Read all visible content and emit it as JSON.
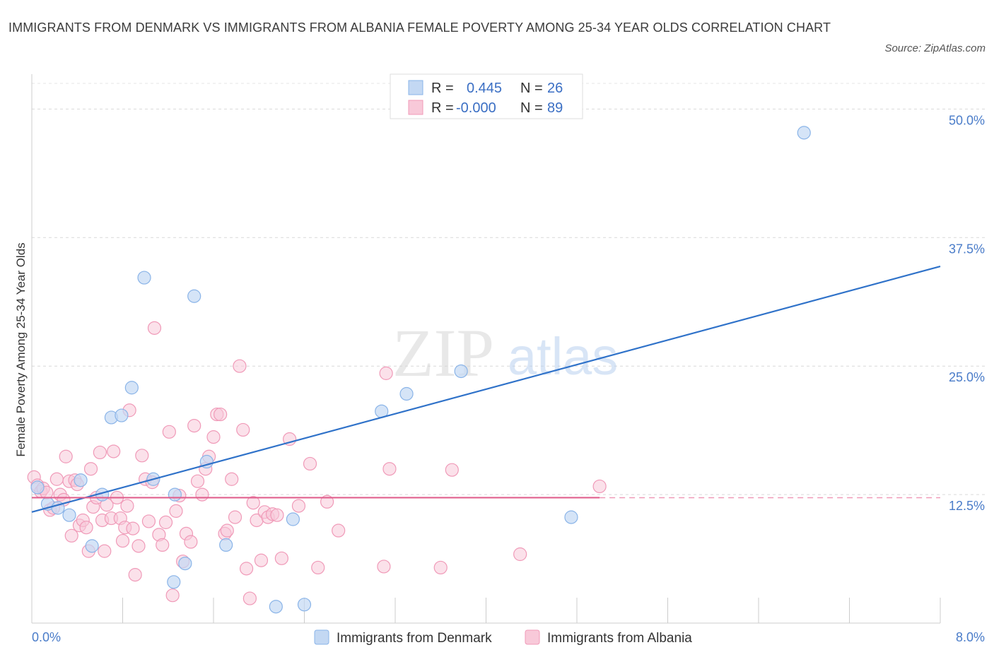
{
  "title": "IMMIGRANTS FROM DENMARK VS IMMIGRANTS FROM ALBANIA FEMALE POVERTY AMONG 25-34 YEAR OLDS CORRELATION CHART",
  "source": "Source: ZipAtlas.com",
  "watermark": {
    "zip": "ZIP",
    "atlas": "atlas"
  },
  "chart_data": {
    "type": "scatter",
    "title": "IMMIGRANTS FROM DENMARK VS IMMIGRANTS FROM ALBANIA FEMALE POVERTY AMONG 25-34 YEAR OLDS CORRELATION CHART",
    "xlabel": "",
    "ylabel": "Female Poverty Among 25-34 Year Olds",
    "xlim": [
      0,
      8
    ],
    "ylim": [
      0,
      52.5
    ],
    "x_tick_labels": [
      "0.0%",
      "8.0%"
    ],
    "y_ticks": [
      12.5,
      25.0,
      37.5,
      50.0
    ],
    "y_tick_labels": [
      "12.5%",
      "25.0%",
      "37.5%",
      "50.0%"
    ],
    "grid": true,
    "legend_position": "top-center",
    "stats": [
      {
        "r_label": "R =",
        "r_value": "0.445",
        "n_label": "N =",
        "n_value": "26"
      },
      {
        "r_label": "R =",
        "r_value": "-0.000",
        "n_label": "N =",
        "n_value": "89"
      }
    ],
    "series": [
      {
        "name": "Immigrants from Denmark",
        "color": "#8ab4e8",
        "fill": "#c3d8f3",
        "line_color": "#2f72c9",
        "trend": {
          "x": [
            0.0,
            8.0
          ],
          "y": [
            10.8,
            34.7
          ]
        },
        "points": [
          [
            0.05,
            13.2
          ],
          [
            0.14,
            11.6
          ],
          [
            0.23,
            11.2
          ],
          [
            0.33,
            10.5
          ],
          [
            0.43,
            13.9
          ],
          [
            0.53,
            7.5
          ],
          [
            0.62,
            12.5
          ],
          [
            0.7,
            20.0
          ],
          [
            0.79,
            20.2
          ],
          [
            0.88,
            22.9
          ],
          [
            0.99,
            33.6
          ],
          [
            1.07,
            14.0
          ],
          [
            1.25,
            4.0
          ],
          [
            1.26,
            12.5
          ],
          [
            1.35,
            5.8
          ],
          [
            1.43,
            31.8
          ],
          [
            1.54,
            15.7
          ],
          [
            1.71,
            7.6
          ],
          [
            2.15,
            1.6
          ],
          [
            2.3,
            10.1
          ],
          [
            2.4,
            1.8
          ],
          [
            3.08,
            20.6
          ],
          [
            3.3,
            22.3
          ],
          [
            3.78,
            24.5
          ],
          [
            4.75,
            10.3
          ],
          [
            6.8,
            47.7
          ]
        ]
      },
      {
        "name": "Immigrants from Albania",
        "color": "#f09ab8",
        "fill": "#f8c9d9",
        "line_color": "#e0608e",
        "trend": {
          "x": [
            0.0,
            5.0
          ],
          "y": [
            12.2,
            12.2
          ]
        },
        "trend_dashed": {
          "x": [
            5.0,
            8.0
          ],
          "y": [
            12.2,
            12.2
          ]
        },
        "points": [
          [
            0.02,
            14.2
          ],
          [
            0.05,
            13.4
          ],
          [
            0.08,
            12.8
          ],
          [
            0.1,
            13.1
          ],
          [
            0.13,
            12.7
          ],
          [
            0.16,
            11.0
          ],
          [
            0.19,
            11.2
          ],
          [
            0.22,
            14.0
          ],
          [
            0.25,
            12.5
          ],
          [
            0.28,
            12.0
          ],
          [
            0.3,
            16.2
          ],
          [
            0.33,
            13.8
          ],
          [
            0.35,
            8.5
          ],
          [
            0.38,
            13.9
          ],
          [
            0.4,
            13.5
          ],
          [
            0.42,
            9.5
          ],
          [
            0.45,
            10.0
          ],
          [
            0.48,
            9.3
          ],
          [
            0.5,
            7.0
          ],
          [
            0.52,
            15.0
          ],
          [
            0.54,
            11.3
          ],
          [
            0.57,
            12.2
          ],
          [
            0.6,
            16.6
          ],
          [
            0.62,
            10.0
          ],
          [
            0.64,
            7.0
          ],
          [
            0.66,
            11.5
          ],
          [
            0.7,
            10.2
          ],
          [
            0.72,
            16.7
          ],
          [
            0.75,
            12.2
          ],
          [
            0.78,
            10.2
          ],
          [
            0.8,
            8.0
          ],
          [
            0.82,
            9.3
          ],
          [
            0.84,
            11.4
          ],
          [
            0.86,
            20.7
          ],
          [
            0.89,
            9.2
          ],
          [
            0.91,
            4.7
          ],
          [
            0.94,
            7.5
          ],
          [
            0.97,
            16.3
          ],
          [
            1.0,
            14.0
          ],
          [
            1.03,
            9.9
          ],
          [
            1.06,
            13.7
          ],
          [
            1.08,
            28.7
          ],
          [
            1.12,
            8.6
          ],
          [
            1.15,
            7.6
          ],
          [
            1.18,
            9.8
          ],
          [
            1.21,
            18.6
          ],
          [
            1.24,
            2.7
          ],
          [
            1.27,
            10.9
          ],
          [
            1.3,
            12.4
          ],
          [
            1.33,
            6.0
          ],
          [
            1.36,
            8.7
          ],
          [
            1.4,
            7.9
          ],
          [
            1.43,
            19.2
          ],
          [
            1.46,
            13.8
          ],
          [
            1.5,
            12.5
          ],
          [
            1.53,
            15.0
          ],
          [
            1.56,
            16.2
          ],
          [
            1.6,
            18.1
          ],
          [
            1.63,
            20.3
          ],
          [
            1.66,
            20.3
          ],
          [
            1.7,
            8.7
          ],
          [
            1.72,
            9.0
          ],
          [
            1.76,
            14.0
          ],
          [
            1.79,
            10.3
          ],
          [
            1.83,
            25.0
          ],
          [
            1.86,
            18.8
          ],
          [
            1.89,
            5.3
          ],
          [
            1.92,
            2.4
          ],
          [
            1.95,
            11.7
          ],
          [
            1.98,
            10.0
          ],
          [
            2.02,
            6.1
          ],
          [
            2.05,
            10.8
          ],
          [
            2.08,
            10.3
          ],
          [
            2.12,
            10.6
          ],
          [
            2.16,
            10.5
          ],
          [
            2.2,
            6.3
          ],
          [
            2.27,
            17.9
          ],
          [
            2.35,
            11.4
          ],
          [
            2.45,
            15.5
          ],
          [
            2.52,
            5.4
          ],
          [
            2.6,
            11.8
          ],
          [
            2.7,
            9.0
          ],
          [
            3.1,
            5.5
          ],
          [
            3.12,
            24.3
          ],
          [
            3.15,
            15.0
          ],
          [
            3.6,
            5.4
          ],
          [
            3.7,
            14.9
          ],
          [
            4.3,
            6.7
          ],
          [
            5.0,
            13.3
          ]
        ]
      }
    ]
  },
  "bottom_legend": [
    "Immigrants from Denmark",
    "Immigrants from Albania"
  ]
}
